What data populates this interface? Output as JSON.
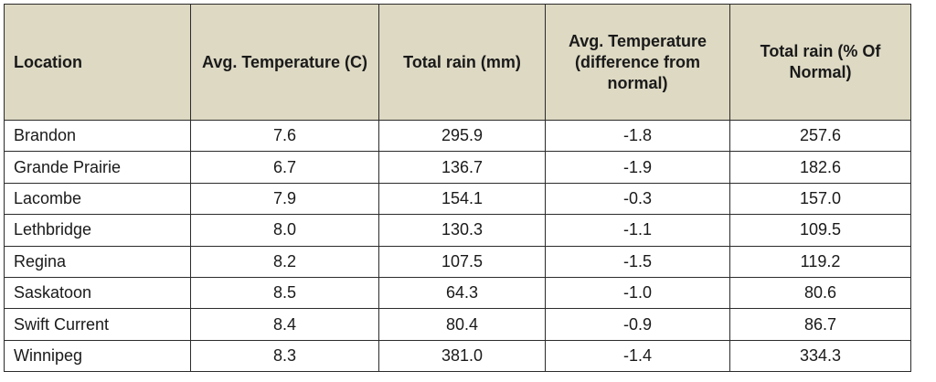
{
  "table": {
    "headers": [
      "Location",
      "Avg. Temperature (C)",
      "Total rain (mm)",
      "Avg. Temperature (difference from normal)",
      "Total rain (% Of Normal)"
    ],
    "rows": [
      [
        "Brandon",
        "7.6",
        "295.9",
        "-1.8",
        "257.6"
      ],
      [
        "Grande Prairie",
        "6.7",
        "136.7",
        "-1.9",
        "182.6"
      ],
      [
        "Lacombe",
        "7.9",
        "154.1",
        "-0.3",
        "157.0"
      ],
      [
        "Lethbridge",
        "8.0",
        "130.3",
        "-1.1",
        "109.5"
      ],
      [
        "Regina",
        "8.2",
        "107.5",
        "-1.5",
        "119.2"
      ],
      [
        "Saskatoon",
        "8.5",
        "64.3",
        "-1.0",
        "80.6"
      ],
      [
        "Swift Current",
        "8.4",
        "80.4",
        "-0.9",
        "86.7"
      ],
      [
        "Winnipeg",
        "8.3",
        "381.0",
        "-1.4",
        "334.3"
      ]
    ]
  },
  "chart_data": {
    "type": "table",
    "columns": [
      "Location",
      "Avg. Temperature (C)",
      "Total rain (mm)",
      "Avg. Temperature (difference from normal)",
      "Total rain (% Of Normal)"
    ],
    "rows": [
      [
        "Brandon",
        7.6,
        295.9,
        -1.8,
        257.6
      ],
      [
        "Grande Prairie",
        6.7,
        136.7,
        -1.9,
        182.6
      ],
      [
        "Lacombe",
        7.9,
        154.1,
        -0.3,
        157.0
      ],
      [
        "Lethbridge",
        8.0,
        130.3,
        -1.1,
        109.5
      ],
      [
        "Regina",
        8.2,
        107.5,
        -1.5,
        119.2
      ],
      [
        "Saskatoon",
        8.5,
        64.3,
        -1.0,
        80.6
      ],
      [
        "Swift Current",
        8.4,
        80.4,
        -0.9,
        86.7
      ],
      [
        "Winnipeg",
        8.3,
        381.0,
        -1.4,
        334.3
      ]
    ]
  },
  "colors": {
    "header_background": "#ddd9c3",
    "border": "#2b2b2b",
    "text": "#1a1a1a"
  }
}
